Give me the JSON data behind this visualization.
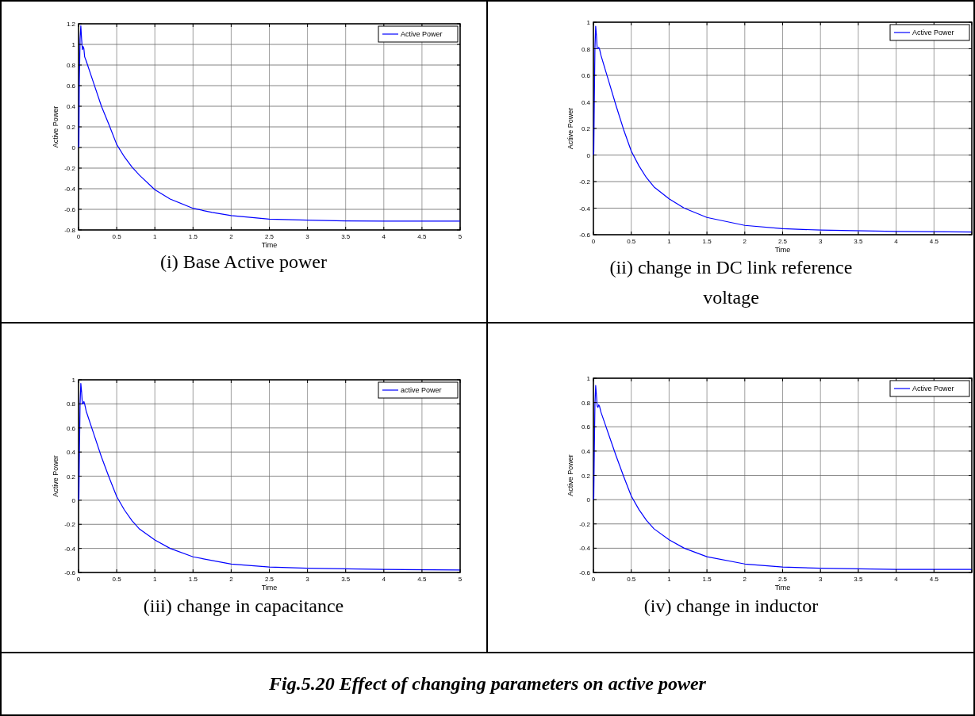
{
  "chart_data": [
    {
      "type": "line",
      "title": "(i) Base Active power",
      "xlabel": "Time",
      "ylabel": "Active Power",
      "xlim": [
        0,
        5
      ],
      "ylim": [
        -0.8,
        1.2
      ],
      "xticks": [
        0,
        0.5,
        1,
        1.5,
        2,
        2.5,
        3,
        3.5,
        4,
        4.5,
        5
      ],
      "yticks": [
        -0.8,
        -0.6,
        -0.4,
        -0.2,
        0,
        0.2,
        0.4,
        0.6,
        0.8,
        1,
        1.2
      ],
      "grid": true,
      "legend": "top right",
      "series": [
        {
          "name": "Active Power",
          "color": "#0000ff",
          "x": [
            0,
            0.005,
            0.01,
            0.02,
            0.03,
            0.04,
            0.05,
            0.06,
            0.07,
            0.08,
            0.1,
            0.2,
            0.3,
            0.4,
            0.5,
            0.6,
            0.7,
            0.8,
            1,
            1.2,
            1.5,
            1.75,
            2,
            2.5,
            3,
            3.5,
            4,
            5
          ],
          "values": [
            0,
            0.02,
            0.6,
            1.05,
            1.18,
            1.05,
            0.95,
            0.98,
            0.96,
            0.88,
            0.84,
            0.62,
            0.4,
            0.22,
            0.03,
            -0.09,
            -0.19,
            -0.27,
            -0.41,
            -0.5,
            -0.59,
            -0.63,
            -0.66,
            -0.695,
            -0.705,
            -0.712,
            -0.715,
            -0.715
          ]
        }
      ]
    },
    {
      "type": "line",
      "title": "(ii) change in DC link reference voltage",
      "xlabel": "Time",
      "ylabel": "Active Power",
      "xlim": [
        0,
        5
      ],
      "ylim": [
        -0.6,
        1
      ],
      "xticks": [
        0,
        0.5,
        1,
        1.5,
        2,
        2.5,
        3,
        3.5,
        4,
        4.5,
        {
          "value": 5,
          "label": null
        }
      ],
      "yticks": [
        -0.6,
        -0.4,
        -0.2,
        0,
        0.2,
        0.4,
        0.6,
        0.8,
        1
      ],
      "grid": true,
      "legend": "top right",
      "series": [
        {
          "name": "Active Power",
          "color": "#0000ff",
          "x": [
            0,
            0.005,
            0.01,
            0.02,
            0.03,
            0.04,
            0.05,
            0.06,
            0.07,
            0.08,
            0.1,
            0.2,
            0.3,
            0.4,
            0.5,
            0.6,
            0.7,
            0.8,
            1,
            1.2,
            1.5,
            2,
            2.5,
            3,
            4,
            5
          ],
          "values": [
            0,
            0.02,
            0.3,
            0.8,
            0.97,
            0.9,
            0.8,
            0.8,
            0.81,
            0.8,
            0.75,
            0.56,
            0.37,
            0.19,
            0.03,
            -0.08,
            -0.17,
            -0.24,
            -0.33,
            -0.4,
            -0.47,
            -0.53,
            -0.555,
            -0.565,
            -0.575,
            -0.58
          ]
        }
      ]
    },
    {
      "type": "line",
      "title": "(iii) change in capacitance",
      "xlabel": "Time",
      "ylabel": "Active Power",
      "xlim": [
        0,
        5
      ],
      "ylim": [
        -0.6,
        1
      ],
      "xticks": [
        0,
        0.5,
        1,
        1.5,
        2,
        2.5,
        3,
        3.5,
        4,
        4.5,
        5
      ],
      "yticks": [
        -0.6,
        -0.4,
        -0.2,
        0,
        0.2,
        0.4,
        0.6,
        0.8,
        1
      ],
      "grid": true,
      "legend": "top right",
      "series": [
        {
          "name": "active Power",
          "color": "#0000ff",
          "x": [
            0,
            0.005,
            0.01,
            0.02,
            0.03,
            0.04,
            0.05,
            0.06,
            0.07,
            0.08,
            0.1,
            0.2,
            0.3,
            0.4,
            0.5,
            0.6,
            0.7,
            0.8,
            1,
            1.2,
            1.5,
            2,
            2.5,
            3,
            4,
            5
          ],
          "values": [
            0,
            0.02,
            0.3,
            0.8,
            0.97,
            0.9,
            0.8,
            0.8,
            0.82,
            0.8,
            0.74,
            0.55,
            0.36,
            0.19,
            0.03,
            -0.08,
            -0.17,
            -0.24,
            -0.33,
            -0.4,
            -0.47,
            -0.53,
            -0.555,
            -0.565,
            -0.575,
            -0.58
          ]
        }
      ]
    },
    {
      "type": "line",
      "title": "(iv) change in inductor",
      "xlabel": "Time",
      "ylabel": "Active Power",
      "xlim": [
        0,
        5
      ],
      "ylim": [
        -0.6,
        1
      ],
      "xticks": [
        0,
        0.5,
        1,
        1.5,
        2,
        2.5,
        3,
        3.5,
        4,
        4.5,
        {
          "value": 5,
          "label": null
        }
      ],
      "yticks": [
        -0.6,
        -0.4,
        -0.2,
        0,
        0.2,
        0.4,
        0.6,
        0.8,
        1
      ],
      "grid": true,
      "legend": "top right",
      "annotations": [
        "Fig.5.20 Effect of changing parameters on active power"
      ],
      "series": [
        {
          "name": "Active Power",
          "color": "#0000ff",
          "x": [
            0,
            0.005,
            0.01,
            0.02,
            0.03,
            0.04,
            0.05,
            0.06,
            0.07,
            0.08,
            0.1,
            0.2,
            0.3,
            0.4,
            0.5,
            0.6,
            0.7,
            0.8,
            1,
            1.2,
            1.5,
            2,
            2.5,
            3,
            4,
            5
          ],
          "values": [
            0,
            0.02,
            0.3,
            0.78,
            0.94,
            0.86,
            0.77,
            0.76,
            0.78,
            0.77,
            0.72,
            0.54,
            0.36,
            0.19,
            0.03,
            -0.08,
            -0.17,
            -0.24,
            -0.33,
            -0.4,
            -0.47,
            -0.53,
            -0.555,
            -0.565,
            -0.575,
            -0.575
          ]
        }
      ]
    }
  ]
}
